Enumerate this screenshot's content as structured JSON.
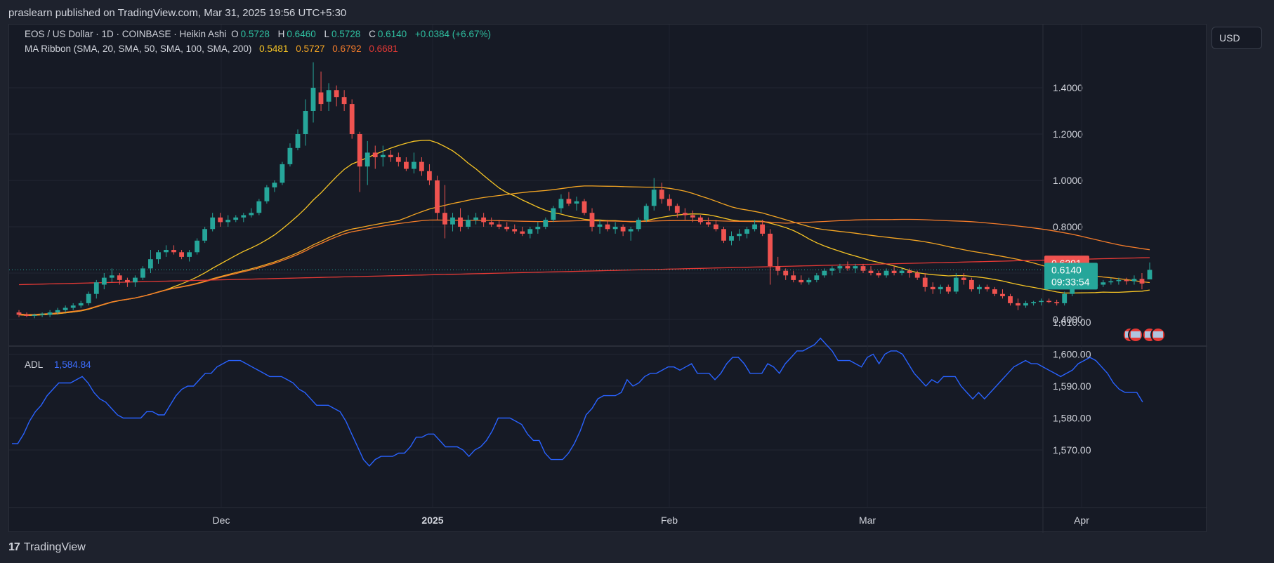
{
  "header": {
    "published": "praslearn published on TradingView.com, Mar 31, 2025 19:56 UTC+5:30"
  },
  "legend": {
    "symbol": "EOS / US Dollar · 1D · COINBASE · Heikin Ashi",
    "o_label": "O",
    "o_value": "0.5728",
    "h_label": "H",
    "h_value": "0.6460",
    "l_label": "L",
    "l_value": "0.5728",
    "c_label": "C",
    "c_value": "0.6140",
    "change": "+0.0384 (+6.67%)",
    "ma_title": "MA Ribbon (SMA, 20, SMA, 50, SMA, 100, SMA, 200)",
    "ma_values": [
      "0.5481",
      "0.5727",
      "0.6792",
      "0.6681"
    ],
    "adl_label": "ADL",
    "adl_value": "1,584.84"
  },
  "currency": "USD",
  "footer": {
    "brand": "TradingView"
  },
  "colors": {
    "up": "#26a69a",
    "down": "#ef5350",
    "ma20": "#f7c525",
    "ma50": "#f5a623",
    "ma100": "#f57c2a",
    "ma200": "#e53935",
    "adl": "#2962ff"
  },
  "chart_data": [
    {
      "type": "candlestick",
      "title": "EOS / US Dollar · 1D · COINBASE · Heikin Ashi",
      "x_ticks": [
        "Dec",
        "2025",
        "Feb",
        "Mar",
        "Apr"
      ],
      "y_ticks": [
        "1.4000",
        "1.2000",
        "1.0000",
        "0.8000",
        "0.4000"
      ],
      "ylim": [
        0.28,
        1.55
      ],
      "last_price_label": "0.6140",
      "countdown_label": "09:33:54",
      "ma_label": "0.6391",
      "ohlc": [
        [
          0.43,
          0.44,
          0.41,
          0.42
        ],
        [
          0.42,
          0.43,
          0.41,
          0.415
        ],
        [
          0.415,
          0.425,
          0.405,
          0.42
        ],
        [
          0.42,
          0.43,
          0.41,
          0.425
        ],
        [
          0.42,
          0.44,
          0.41,
          0.43
        ],
        [
          0.43,
          0.45,
          0.42,
          0.44
        ],
        [
          0.44,
          0.46,
          0.43,
          0.45
        ],
        [
          0.45,
          0.47,
          0.44,
          0.46
        ],
        [
          0.46,
          0.48,
          0.45,
          0.47
        ],
        [
          0.47,
          0.52,
          0.46,
          0.51
        ],
        [
          0.51,
          0.57,
          0.49,
          0.56
        ],
        [
          0.55,
          0.6,
          0.53,
          0.58
        ],
        [
          0.58,
          0.62,
          0.56,
          0.59
        ],
        [
          0.59,
          0.6,
          0.55,
          0.57
        ],
        [
          0.57,
          0.58,
          0.54,
          0.56
        ],
        [
          0.56,
          0.59,
          0.54,
          0.58
        ],
        [
          0.58,
          0.63,
          0.57,
          0.62
        ],
        [
          0.62,
          0.7,
          0.6,
          0.66
        ],
        [
          0.66,
          0.7,
          0.64,
          0.69
        ],
        [
          0.69,
          0.72,
          0.67,
          0.7
        ],
        [
          0.7,
          0.72,
          0.68,
          0.69
        ],
        [
          0.69,
          0.7,
          0.66,
          0.67
        ],
        [
          0.67,
          0.7,
          0.65,
          0.69
        ],
        [
          0.69,
          0.75,
          0.68,
          0.74
        ],
        [
          0.74,
          0.8,
          0.73,
          0.79
        ],
        [
          0.79,
          0.86,
          0.78,
          0.84
        ],
        [
          0.84,
          0.86,
          0.8,
          0.82
        ],
        [
          0.82,
          0.85,
          0.8,
          0.83
        ],
        [
          0.83,
          0.85,
          0.82,
          0.84
        ],
        [
          0.84,
          0.86,
          0.82,
          0.85
        ],
        [
          0.85,
          0.88,
          0.84,
          0.86
        ],
        [
          0.86,
          0.92,
          0.85,
          0.91
        ],
        [
          0.91,
          0.98,
          0.9,
          0.97
        ],
        [
          0.97,
          1.0,
          0.95,
          0.99
        ],
        [
          0.99,
          1.08,
          0.98,
          1.07
        ],
        [
          1.07,
          1.16,
          1.06,
          1.14
        ],
        [
          1.14,
          1.22,
          1.13,
          1.2
        ],
        [
          1.2,
          1.35,
          1.15,
          1.3
        ],
        [
          1.3,
          1.51,
          1.25,
          1.4
        ],
        [
          1.38,
          1.47,
          1.3,
          1.33
        ],
        [
          1.34,
          1.42,
          1.3,
          1.39
        ],
        [
          1.39,
          1.41,
          1.32,
          1.36
        ],
        [
          1.36,
          1.39,
          1.3,
          1.33
        ],
        [
          1.33,
          1.35,
          1.18,
          1.2
        ],
        [
          1.2,
          1.21,
          0.95,
          1.06
        ],
        [
          1.06,
          1.17,
          0.98,
          1.12
        ],
        [
          1.12,
          1.15,
          1.05,
          1.1
        ],
        [
          1.1,
          1.15,
          1.06,
          1.11
        ],
        [
          1.11,
          1.13,
          1.08,
          1.1
        ],
        [
          1.1,
          1.12,
          1.06,
          1.08
        ],
        [
          1.08,
          1.1,
          1.04,
          1.05
        ],
        [
          1.05,
          1.12,
          1.03,
          1.08
        ],
        [
          1.08,
          1.1,
          1.02,
          1.04
        ],
        [
          1.04,
          1.07,
          0.98,
          1.0
        ],
        [
          1.0,
          1.02,
          0.83,
          0.86
        ],
        [
          0.86,
          0.98,
          0.75,
          0.81
        ],
        [
          0.81,
          0.86,
          0.78,
          0.84
        ],
        [
          0.84,
          0.88,
          0.78,
          0.8
        ],
        [
          0.8,
          0.85,
          0.79,
          0.83
        ],
        [
          0.83,
          0.86,
          0.81,
          0.84
        ],
        [
          0.84,
          0.86,
          0.8,
          0.82
        ],
        [
          0.82,
          0.84,
          0.8,
          0.81
        ],
        [
          0.81,
          0.83,
          0.79,
          0.8
        ],
        [
          0.8,
          0.82,
          0.78,
          0.79
        ],
        [
          0.79,
          0.81,
          0.77,
          0.78
        ],
        [
          0.78,
          0.8,
          0.76,
          0.77
        ],
        [
          0.77,
          0.8,
          0.75,
          0.79
        ],
        [
          0.79,
          0.82,
          0.77,
          0.8
        ],
        [
          0.8,
          0.84,
          0.79,
          0.83
        ],
        [
          0.83,
          0.89,
          0.82,
          0.88
        ],
        [
          0.88,
          0.94,
          0.86,
          0.92
        ],
        [
          0.92,
          0.95,
          0.89,
          0.9
        ],
        [
          0.9,
          0.93,
          0.87,
          0.91
        ],
        [
          0.91,
          0.92,
          0.85,
          0.86
        ],
        [
          0.86,
          0.88,
          0.78,
          0.8
        ],
        [
          0.8,
          0.83,
          0.77,
          0.81
        ],
        [
          0.81,
          0.83,
          0.78,
          0.79
        ],
        [
          0.79,
          0.82,
          0.77,
          0.8
        ],
        [
          0.8,
          0.81,
          0.76,
          0.78
        ],
        [
          0.78,
          0.8,
          0.74,
          0.79
        ],
        [
          0.79,
          0.84,
          0.78,
          0.83
        ],
        [
          0.83,
          0.9,
          0.82,
          0.89
        ],
        [
          0.89,
          1.01,
          0.87,
          0.96
        ],
        [
          0.96,
          0.99,
          0.9,
          0.92
        ],
        [
          0.92,
          0.94,
          0.87,
          0.89
        ],
        [
          0.89,
          0.9,
          0.84,
          0.86
        ],
        [
          0.86,
          0.88,
          0.83,
          0.85
        ],
        [
          0.85,
          0.87,
          0.82,
          0.84
        ],
        [
          0.84,
          0.85,
          0.81,
          0.82
        ],
        [
          0.82,
          0.84,
          0.8,
          0.81
        ],
        [
          0.81,
          0.83,
          0.78,
          0.79
        ],
        [
          0.79,
          0.8,
          0.73,
          0.74
        ],
        [
          0.74,
          0.78,
          0.72,
          0.76
        ],
        [
          0.76,
          0.79,
          0.74,
          0.77
        ],
        [
          0.77,
          0.8,
          0.75,
          0.79
        ],
        [
          0.79,
          0.83,
          0.78,
          0.81
        ],
        [
          0.81,
          0.83,
          0.76,
          0.77
        ],
        [
          0.77,
          0.79,
          0.55,
          0.63
        ],
        [
          0.63,
          0.67,
          0.59,
          0.61
        ],
        [
          0.61,
          0.62,
          0.57,
          0.59
        ],
        [
          0.59,
          0.61,
          0.56,
          0.57
        ],
        [
          0.57,
          0.59,
          0.55,
          0.56
        ],
        [
          0.56,
          0.58,
          0.55,
          0.57
        ],
        [
          0.57,
          0.6,
          0.56,
          0.59
        ],
        [
          0.59,
          0.62,
          0.58,
          0.61
        ],
        [
          0.61,
          0.63,
          0.59,
          0.62
        ],
        [
          0.62,
          0.64,
          0.6,
          0.63
        ],
        [
          0.63,
          0.65,
          0.61,
          0.62
        ],
        [
          0.62,
          0.64,
          0.6,
          0.63
        ],
        [
          0.63,
          0.64,
          0.6,
          0.61
        ],
        [
          0.61,
          0.63,
          0.59,
          0.6
        ],
        [
          0.6,
          0.61,
          0.58,
          0.59
        ],
        [
          0.59,
          0.62,
          0.58,
          0.61
        ],
        [
          0.61,
          0.63,
          0.59,
          0.6
        ],
        [
          0.6,
          0.62,
          0.59,
          0.61
        ],
        [
          0.61,
          0.62,
          0.58,
          0.6
        ],
        [
          0.6,
          0.61,
          0.57,
          0.58
        ],
        [
          0.58,
          0.6,
          0.52,
          0.54
        ],
        [
          0.54,
          0.56,
          0.51,
          0.53
        ],
        [
          0.53,
          0.55,
          0.51,
          0.54
        ],
        [
          0.54,
          0.55,
          0.51,
          0.52
        ],
        [
          0.52,
          0.6,
          0.51,
          0.58
        ],
        [
          0.58,
          0.6,
          0.55,
          0.57
        ],
        [
          0.57,
          0.58,
          0.52,
          0.53
        ],
        [
          0.53,
          0.55,
          0.51,
          0.54
        ],
        [
          0.54,
          0.55,
          0.52,
          0.53
        ],
        [
          0.53,
          0.54,
          0.5,
          0.51
        ],
        [
          0.51,
          0.53,
          0.49,
          0.5
        ],
        [
          0.5,
          0.51,
          0.46,
          0.47
        ],
        [
          0.47,
          0.49,
          0.44,
          0.46
        ],
        [
          0.46,
          0.48,
          0.45,
          0.47
        ],
        [
          0.47,
          0.48,
          0.46,
          0.475
        ],
        [
          0.475,
          0.49,
          0.46,
          0.48
        ],
        [
          0.48,
          0.49,
          0.47,
          0.475
        ],
        [
          0.475,
          0.485,
          0.46,
          0.47
        ],
        [
          0.47,
          0.52,
          0.46,
          0.51
        ],
        [
          0.51,
          0.64,
          0.5,
          0.58
        ],
        [
          0.58,
          0.6,
          0.54,
          0.55
        ],
        [
          0.55,
          0.56,
          0.53,
          0.545
        ],
        [
          0.545,
          0.56,
          0.53,
          0.55
        ],
        [
          0.55,
          0.57,
          0.54,
          0.56
        ],
        [
          0.56,
          0.58,
          0.55,
          0.565
        ],
        [
          0.565,
          0.58,
          0.55,
          0.57
        ],
        [
          0.57,
          0.58,
          0.55,
          0.565
        ],
        [
          0.565,
          0.59,
          0.55,
          0.575
        ],
        [
          0.575,
          0.6,
          0.53,
          0.555
        ],
        [
          0.5728,
          0.646,
          0.5728,
          0.614
        ]
      ]
    },
    {
      "type": "line",
      "name": "ADL",
      "y_ticks": [
        "1,610.00",
        "1,600.00",
        "1,590.00",
        "1,580.00",
        "1,570.00"
      ],
      "ylim": [
        1560,
        1610
      ],
      "values": [
        1572,
        1572,
        1575,
        1579,
        1582,
        1584,
        1587,
        1589,
        1591,
        1591,
        1591,
        1592,
        1593,
        1591,
        1588,
        1586,
        1585,
        1583,
        1581,
        1580,
        1580,
        1580,
        1580,
        1582,
        1582,
        1581,
        1581,
        1584,
        1587,
        1589,
        1590,
        1590,
        1592,
        1594,
        1594,
        1596,
        1597,
        1598,
        1598,
        1598,
        1597,
        1596,
        1595,
        1594,
        1593,
        1593,
        1593,
        1592,
        1591,
        1589,
        1588,
        1586,
        1584,
        1584,
        1584,
        1583,
        1582,
        1579,
        1575,
        1571,
        1567,
        1565,
        1567,
        1568,
        1568,
        1568,
        1569,
        1569,
        1571,
        1574,
        1574,
        1575,
        1575,
        1573,
        1571,
        1571,
        1571,
        1570,
        1568,
        1570,
        1571,
        1573,
        1576,
        1580,
        1580,
        1580,
        1579,
        1578,
        1575,
        1573,
        1573,
        1569,
        1567,
        1567,
        1567,
        1569,
        1572,
        1576,
        1581,
        1583,
        1586,
        1587,
        1587,
        1587,
        1588,
        1592,
        1590,
        1591,
        1593,
        1594,
        1594,
        1595,
        1596,
        1596,
        1595,
        1596,
        1597,
        1594,
        1594,
        1594,
        1592,
        1594,
        1597,
        1599,
        1599,
        1597,
        1594,
        1594,
        1594,
        1597,
        1596,
        1594,
        1597,
        1599,
        1601,
        1601,
        1602,
        1603,
        1605,
        1603,
        1601,
        1598,
        1598,
        1598,
        1597,
        1596,
        1599,
        1600,
        1597,
        1600,
        1601,
        1601,
        1600,
        1597,
        1594,
        1592,
        1590,
        1592,
        1591,
        1593,
        1593,
        1593,
        1590,
        1588,
        1586,
        1588,
        1586,
        1588,
        1590,
        1592,
        1594,
        1596,
        1597,
        1598,
        1597,
        1597,
        1596,
        1595,
        1594,
        1593,
        1594,
        1595,
        1597,
        1598,
        1599,
        1598,
        1596,
        1594,
        1591,
        1589,
        1588,
        1588,
        1588,
        1585
      ]
    }
  ]
}
